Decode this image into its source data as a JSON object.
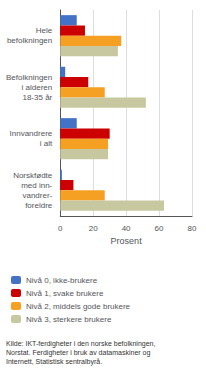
{
  "chart_data": {
    "type": "bar",
    "orientation": "horizontal",
    "categories": [
      "Hele\nbefolkningen",
      "Befolkningen\ni alderen\n18-35 år",
      "Innvandrere\ni alt",
      "Norskfødte\nmed inn-\nvandrer-\nforeldre"
    ],
    "series": [
      {
        "name": "Nivå 0, ikke-brukere",
        "color": "#4472c4",
        "values": [
          10,
          3,
          10,
          1
        ]
      },
      {
        "name": "Nivå 1, svake brukere",
        "color": "#cc0000",
        "values": [
          15,
          17,
          30,
          8
        ]
      },
      {
        "name": "Nivå 2, middels gode brukere",
        "color": "#f5a023",
        "values": [
          37,
          27,
          29,
          27
        ]
      },
      {
        "name": "Nivå 3, sterkere brukere",
        "color": "#c8c8a0",
        "values": [
          35,
          52,
          29,
          63
        ]
      }
    ],
    "xlabel": "Prosent",
    "xlim": [
      0,
      80
    ],
    "xticks": [
      0,
      20,
      40,
      60,
      80
    ],
    "grid": true,
    "legend": "bottom",
    "annotations": [
      "Kilde: IKT-ferdigheter i den norske befolkningen,\nNorstat. Ferdigheter i bruk av datamaskiner og\nInternett, Statistisk sentralbyrå."
    ]
  }
}
